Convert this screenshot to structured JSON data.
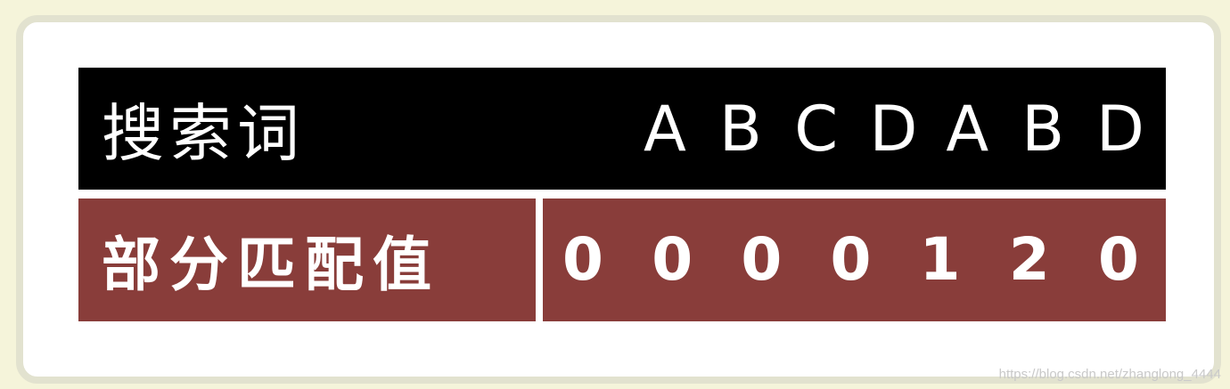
{
  "table": {
    "header_label": "搜索词",
    "header_chars": [
      "A",
      "B",
      "C",
      "D",
      "A",
      "B",
      "D"
    ],
    "row_label": "部分匹配值",
    "row_values": [
      "0",
      "0",
      "0",
      "0",
      "1",
      "2",
      "0"
    ]
  },
  "watermark": "https://blog.csdn.net/zhanglong_4444",
  "colors": {
    "page_background": "#f5f4da",
    "header_background": "#000000",
    "row_background": "#893d3a",
    "text": "#ffffff"
  }
}
